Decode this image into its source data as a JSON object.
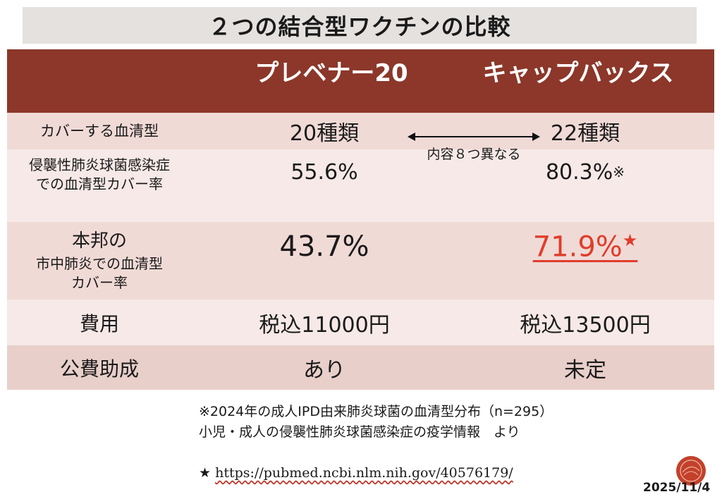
{
  "title": "２つの結合型ワクチンの比較",
  "headers": {
    "col1": "プレベナー20",
    "col2": "キャップバックス"
  },
  "rows": {
    "serotypes": {
      "label": "カバーする血清型",
      "v1": "20種類",
      "v2": "22種類",
      "note": "内容８つ異なる"
    },
    "ipd": {
      "label_line1": "侵襲性肺炎球菌感染症",
      "label_line2": "での血清型カバー率",
      "v1": "55.6%",
      "v2": "80.3%",
      "v2_mark": "※"
    },
    "cap": {
      "label_line1": "本邦の",
      "label_line2": "市中肺炎での血清型",
      "label_line3": "カバー率",
      "v1": "43.7%",
      "v2": "71.9%",
      "v2_mark": "★"
    },
    "cost": {
      "label": "費用",
      "v1": "税込11000円",
      "v2": "税込13500円"
    },
    "subsidy": {
      "label": "公費助成",
      "v1": "あり",
      "v2": "未定"
    }
  },
  "footnotes": {
    "line1": "※2024年の成人IPD由来肺炎球菌の血清型分布（n=295）",
    "line2": "小児・成人の侵襲性肺炎球菌感染症の疫学情報　より",
    "star_mark": "★",
    "url": "https://pubmed.ncbi.nlm.nih.gov/40576179/"
  },
  "date": "2025/11/4",
  "colors": {
    "header_bg": "#8c372a",
    "highlight": "#e03d2b"
  },
  "icons": {
    "logo": "round-red-logo-icon"
  }
}
